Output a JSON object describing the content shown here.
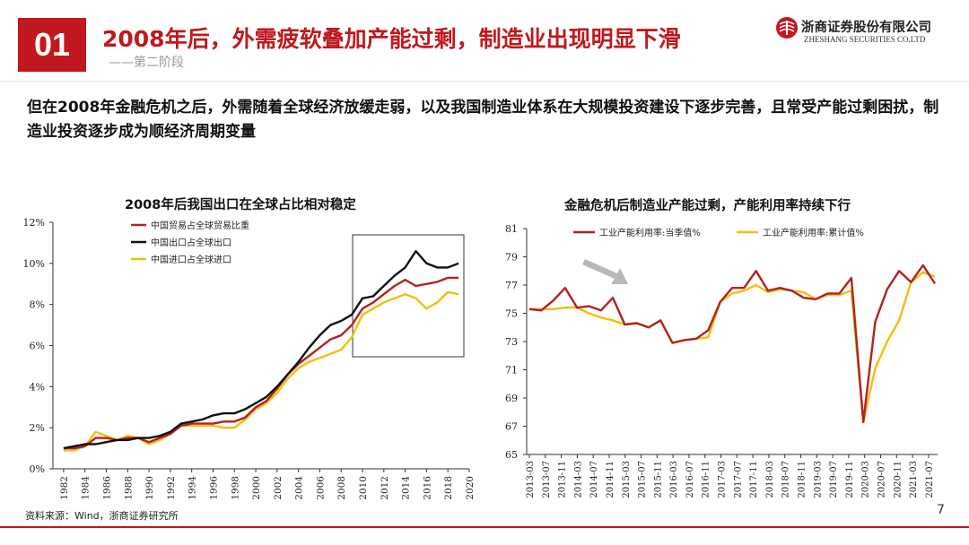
{
  "header": {
    "number": "01",
    "title": "2008年后，外需疲软叠加产能过剩，制造业出现明显下滑",
    "subtitle": "——第二阶段",
    "logo_cn": "浙商证券股份有限公司",
    "logo_en": "ZHESHANG SECURITIES CO.LTD",
    "accent_color": "#c0181e"
  },
  "body_text": "但在2008年金融危机之后，外需随着全球经济放缓走弱，以及我国制造业体系在大规模投资建设下逐步完善，且常受产能过剩困扰，制造业投资逐步成为顺经济周期变量",
  "footer": {
    "source": "资料来源：Wind，浙商证券研究所",
    "page": "7"
  },
  "chart_data": [
    {
      "type": "line",
      "title": "2008年后我国出口在全球占比相对稳定",
      "x": [
        1982,
        1983,
        1984,
        1985,
        1986,
        1987,
        1988,
        1989,
        1990,
        1991,
        1992,
        1993,
        1994,
        1995,
        1996,
        1997,
        1998,
        1999,
        2000,
        2001,
        2002,
        2003,
        2004,
        2005,
        2006,
        2007,
        2008,
        2009,
        2010,
        2011,
        2012,
        2013,
        2014,
        2015,
        2016,
        2017,
        2018,
        2019
      ],
      "x_ticks": [
        "1982",
        "1984",
        "1986",
        "1988",
        "1990",
        "1992",
        "1994",
        "1996",
        "1998",
        "2000",
        "2002",
        "2004",
        "2006",
        "2008",
        "2010",
        "2012",
        "2014",
        "2016",
        "2018",
        "2020"
      ],
      "y_ticks": [
        "0%",
        "2%",
        "4%",
        "6%",
        "8%",
        "10%",
        "12%"
      ],
      "ylim": [
        0,
        12
      ],
      "grid": false,
      "legend_position": "top-left",
      "annotation": "highlight box 2009–2020",
      "series": [
        {
          "name": "中国贸易占全球贸易比重",
          "color": "#b22222",
          "values": [
            1.0,
            1.0,
            1.1,
            1.5,
            1.5,
            1.4,
            1.5,
            1.5,
            1.3,
            1.5,
            1.7,
            2.1,
            2.2,
            2.2,
            2.2,
            2.3,
            2.3,
            2.5,
            3.0,
            3.3,
            3.9,
            4.6,
            5.1,
            5.5,
            5.9,
            6.3,
            6.5,
            7.0,
            7.8,
            8.1,
            8.5,
            8.9,
            9.2,
            8.9,
            9.0,
            9.1,
            9.3,
            9.3
          ]
        },
        {
          "name": "中国出口占全球出口",
          "color": "#111111",
          "values": [
            1.0,
            1.1,
            1.2,
            1.2,
            1.3,
            1.4,
            1.4,
            1.5,
            1.5,
            1.6,
            1.8,
            2.2,
            2.3,
            2.4,
            2.6,
            2.7,
            2.7,
            2.9,
            3.2,
            3.5,
            4.0,
            4.6,
            5.2,
            5.9,
            6.5,
            7.0,
            7.2,
            7.5,
            8.3,
            8.4,
            8.9,
            9.4,
            9.8,
            10.6,
            10.0,
            9.8,
            9.8,
            10.0
          ]
        },
        {
          "name": "中国进口占全球进口",
          "color": "#f5be0b",
          "values": [
            0.9,
            0.9,
            1.1,
            1.8,
            1.6,
            1.4,
            1.6,
            1.5,
            1.2,
            1.4,
            1.7,
            2.1,
            2.1,
            2.1,
            2.1,
            2.0,
            2.0,
            2.4,
            2.9,
            3.2,
            3.7,
            4.4,
            4.9,
            5.2,
            5.4,
            5.6,
            5.8,
            6.4,
            7.5,
            7.8,
            8.1,
            8.3,
            8.5,
            8.3,
            7.8,
            8.1,
            8.6,
            8.5
          ]
        }
      ]
    },
    {
      "type": "line",
      "title": "金融危机后制造业产能过剩，产能利用率持续下行",
      "x_ticks": [
        "2013-03",
        "2013-07",
        "2013-11",
        "2014-03",
        "2014-07",
        "2014-11",
        "2015-03",
        "2015-07",
        "2015-11",
        "2016-03",
        "2016-07",
        "2016-11",
        "2017-03",
        "2017-07",
        "2017-11",
        "2018-03",
        "2018-07",
        "2018-11",
        "2019-03",
        "2019-07",
        "2019-11",
        "2020-03",
        "2020-07",
        "2020-11",
        "2021-03",
        "2021-07"
      ],
      "y_ticks": [
        "65",
        "67",
        "69",
        "71",
        "73",
        "75",
        "77",
        "79",
        "81"
      ],
      "ylim": [
        65,
        81
      ],
      "grid": false,
      "legend_position": "top",
      "annotation": "gray downward arrow",
      "series": [
        {
          "name": "工业产能利用率:当季值%",
          "color": "#b22222",
          "values": [
            75.3,
            75.2,
            75.9,
            76.8,
            75.4,
            75.5,
            75.2,
            76.1,
            74.2,
            74.3,
            74.0,
            74.5,
            72.9,
            73.1,
            73.2,
            73.8,
            75.8,
            76.8,
            76.8,
            78.0,
            76.6,
            76.8,
            76.6,
            76.1,
            76.0,
            76.4,
            76.4,
            77.5,
            67.3,
            74.4,
            76.7,
            78.0,
            77.2,
            78.4,
            77.1
          ]
        },
        {
          "name": "工业产能利用率:累计值%",
          "color": "#f5be0b",
          "values": [
            75.3,
            75.3,
            75.3,
            75.4,
            75.4,
            75.0,
            74.7,
            74.5,
            74.2,
            74.3,
            74.0,
            74.5,
            72.9,
            73.1,
            73.2,
            73.3,
            75.8,
            76.4,
            76.6,
            77.0,
            76.5,
            76.7,
            76.6,
            76.5,
            76.0,
            76.3,
            76.3,
            76.6,
            67.3,
            71.1,
            73.0,
            74.5,
            77.2,
            77.9,
            77.6
          ]
        }
      ]
    }
  ]
}
